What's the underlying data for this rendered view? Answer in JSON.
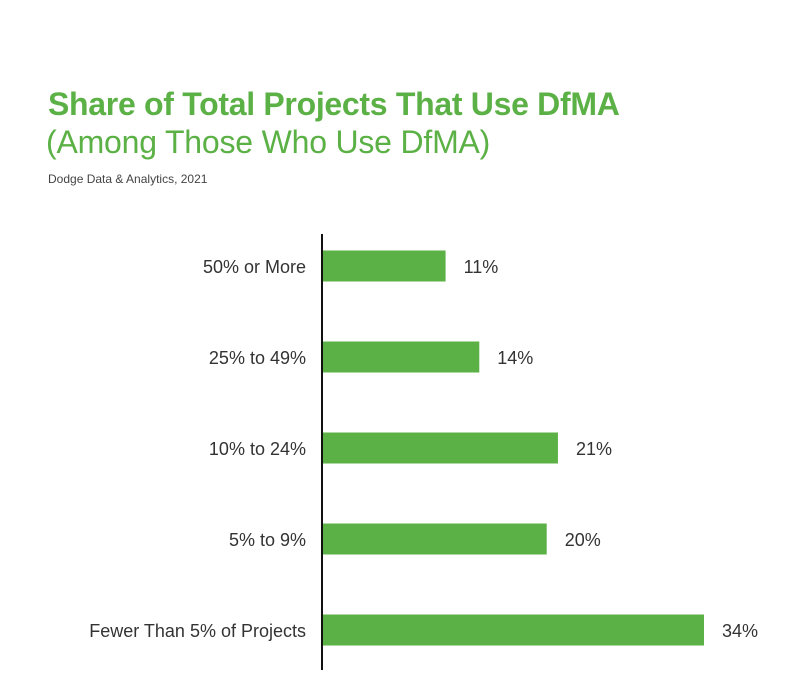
{
  "chart_data": {
    "type": "bar",
    "orientation": "horizontal",
    "title": "Share of Total Projects That Use DfMA",
    "subtitle": "(Among Those Who Use DfMA)",
    "source": "Dodge Data & Analytics, 2021",
    "categories": [
      "50% or More",
      "25% to 49%",
      "10% to 24%",
      "5% to 9%",
      "Fewer Than 5% of Projects"
    ],
    "values": [
      11,
      14,
      21,
      20,
      34
    ],
    "value_labels": [
      "11%",
      "14%",
      "21%",
      "20%",
      "34%"
    ],
    "xlabel": "",
    "ylabel": "",
    "xlim": [
      0,
      34
    ],
    "grid": false,
    "legend": "none",
    "bar_color": "#5bb145",
    "axis_color": "#111111"
  }
}
